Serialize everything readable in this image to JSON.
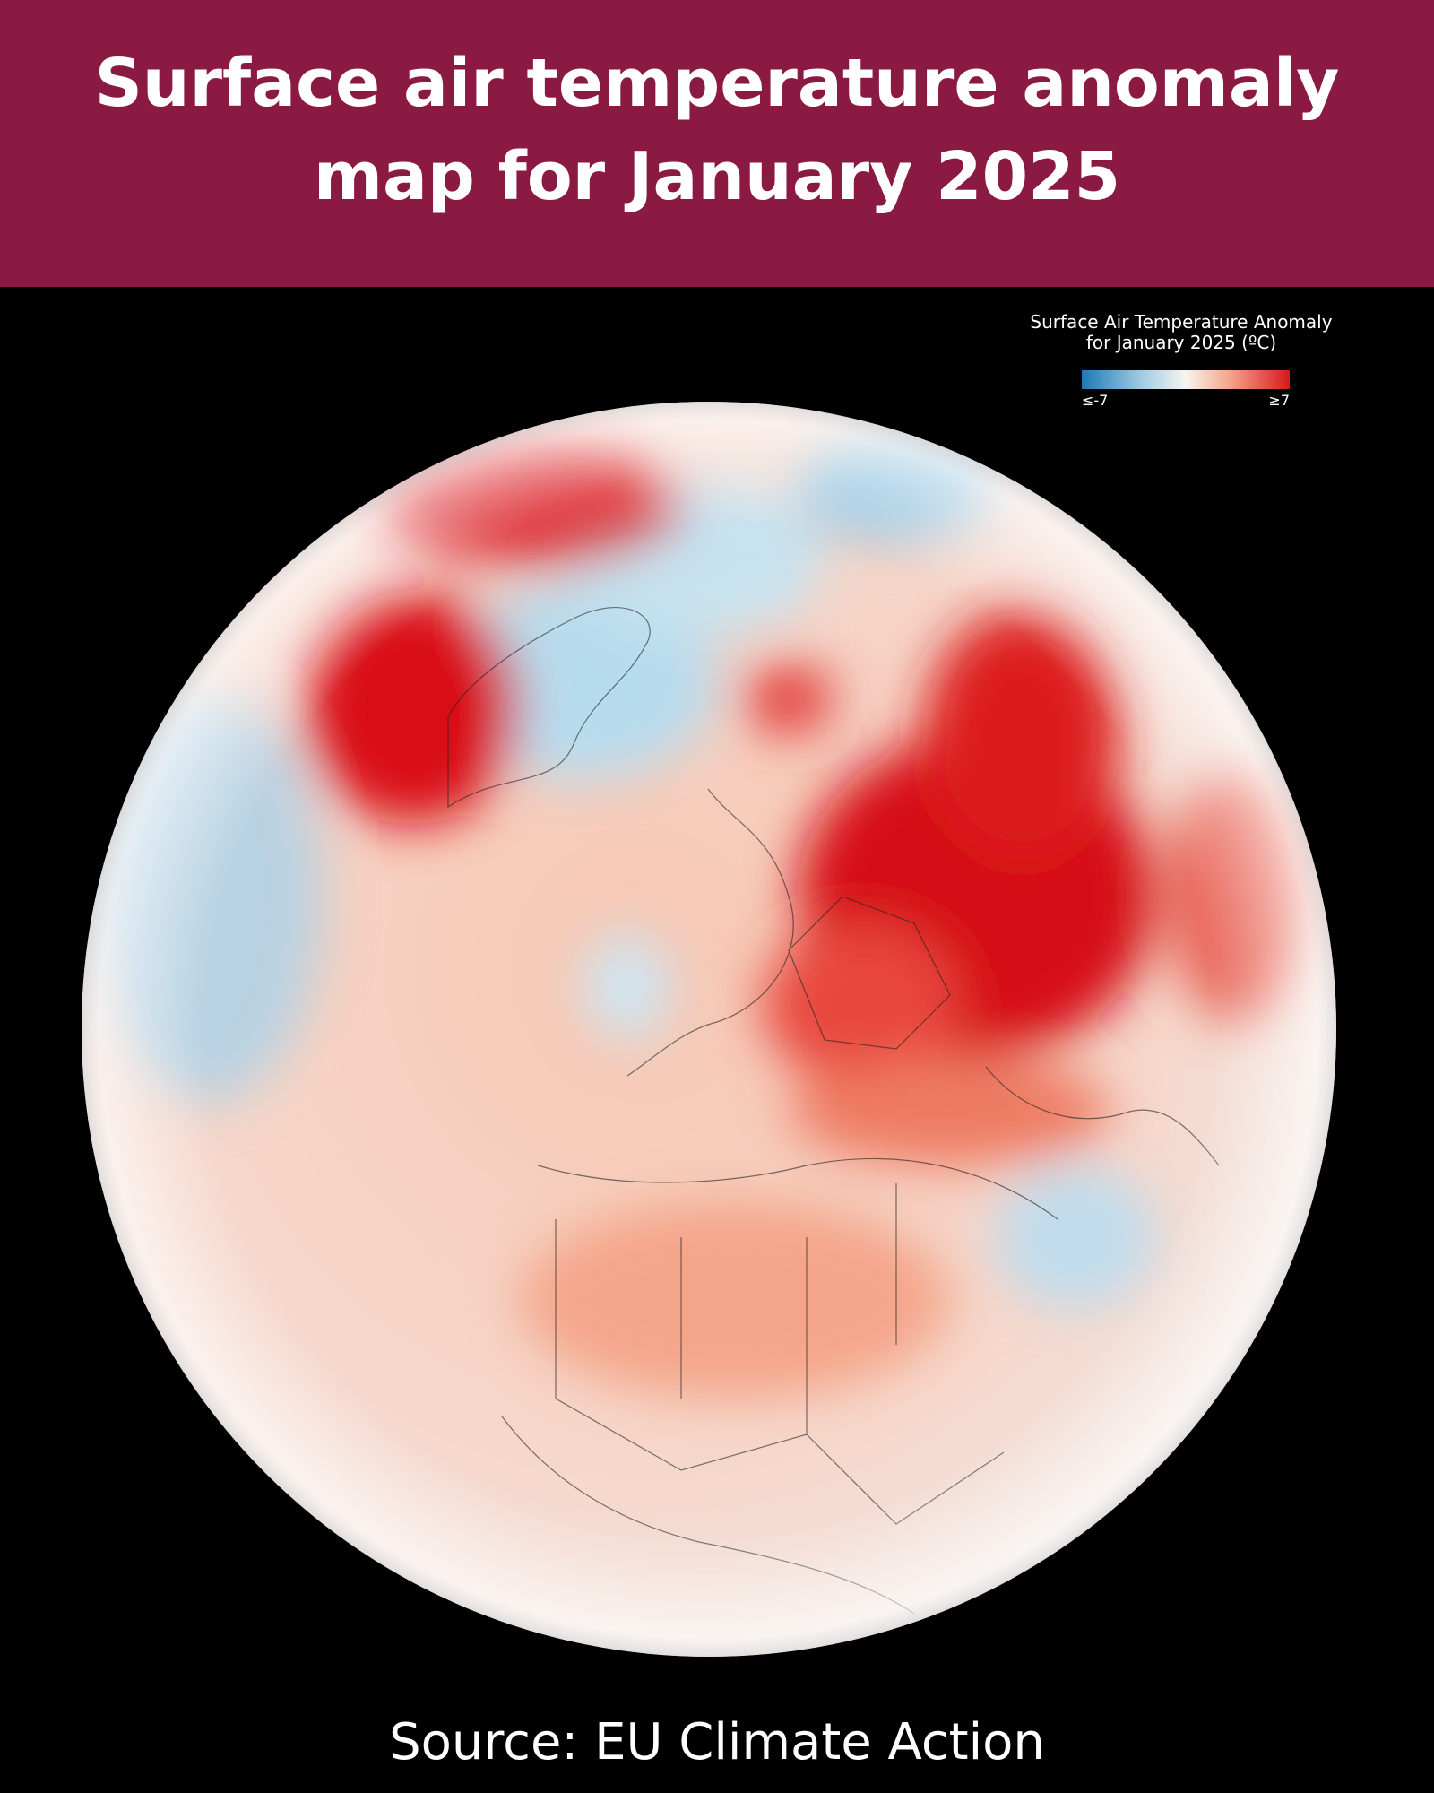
{
  "header": {
    "title_lines": [
      "Surface air temperature anomaly",
      "map for January 2025"
    ]
  },
  "legend": {
    "title_lines": [
      "Surface Air Temperature Anomaly",
      "for January 2025 (ºC)"
    ],
    "min_label": "≤-7",
    "max_label": "≥7"
  },
  "footer": {
    "source": "Source: EU Climate Action"
  }
}
